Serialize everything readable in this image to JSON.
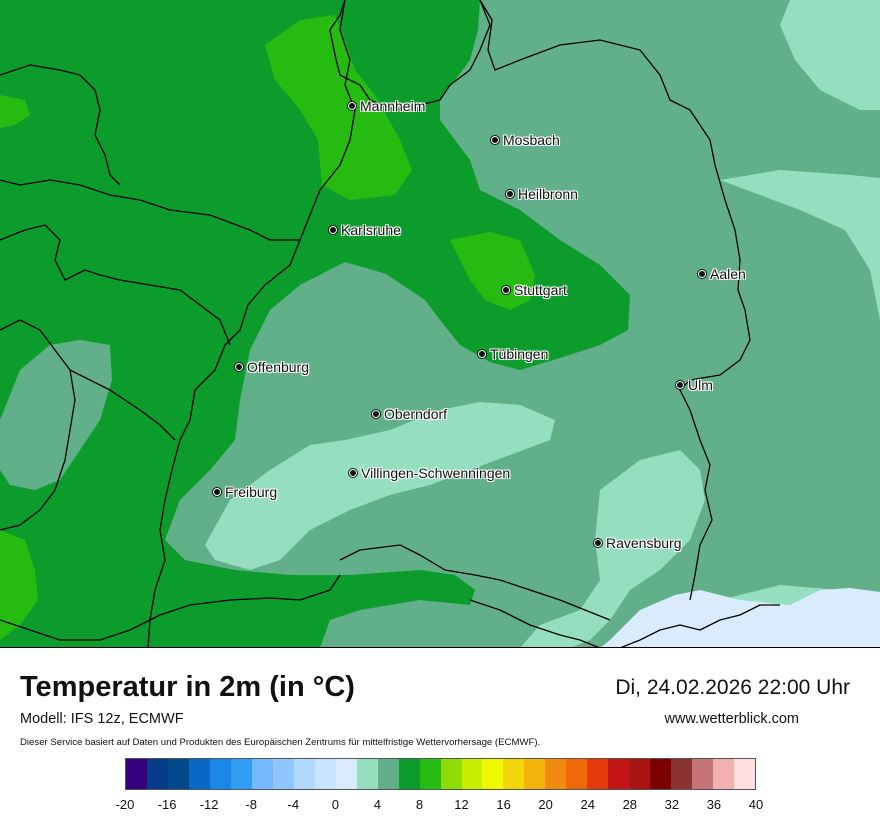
{
  "map": {
    "cities": [
      {
        "name": "Mannheim"
      },
      {
        "name": "Mosbach"
      },
      {
        "name": "Heilbronn"
      },
      {
        "name": "Karlsruhe"
      },
      {
        "name": "Aalen"
      },
      {
        "name": "Stuttgart"
      },
      {
        "name": "Offenburg"
      },
      {
        "name": "Tübingen"
      },
      {
        "name": "Ulm"
      },
      {
        "name": "Oberndorf"
      },
      {
        "name": "Villingen-Schwenningen"
      },
      {
        "name": "Freiburg"
      },
      {
        "name": "Ravensburg"
      }
    ]
  },
  "header": {
    "title": "Temperatur in 2m (in °C)",
    "model": "Modell: IFS 12z, ECMWF",
    "datetime": "Di, 24.02.2026 22:00 Uhr",
    "website": "www.wetterblick.com",
    "notice": "Dieser Service basiert auf Daten und Produkten des Europäischen Zentrums für mittelfristige Wettervorhersage (ECMWF)."
  },
  "legend": {
    "colors": [
      "#35007e",
      "#063b8a",
      "#004a8c",
      "#0a67c4",
      "#1a86e8",
      "#319df5",
      "#73b9fb",
      "#8fc7fc",
      "#b1d8fd",
      "#c8e3fd",
      "#d9ebfd",
      "#95dfc0",
      "#62b08a",
      "#0c9c2c",
      "#25bb10",
      "#8fdd05",
      "#c8ef00",
      "#eff800",
      "#f2d60a",
      "#f2b40a",
      "#f18b0f",
      "#ef6a07",
      "#e63a0c",
      "#c21515",
      "#ab1414",
      "#7d0000",
      "#8b3232",
      "#c47474",
      "#f3b0b0",
      "#ffdede"
    ],
    "ticks": [
      "-20",
      "-16",
      "-12",
      "-8",
      "-4",
      "0",
      "4",
      "8",
      "12",
      "16",
      "20",
      "24",
      "28",
      "32",
      "36",
      "40"
    ]
  },
  "field_colors": {
    "dark_green": "#0c9c2c",
    "light_green": "#25bb10",
    "grey_green": "#62b08a",
    "mint": "#95dfc0",
    "pale_blue": "#d9ebfd"
  }
}
